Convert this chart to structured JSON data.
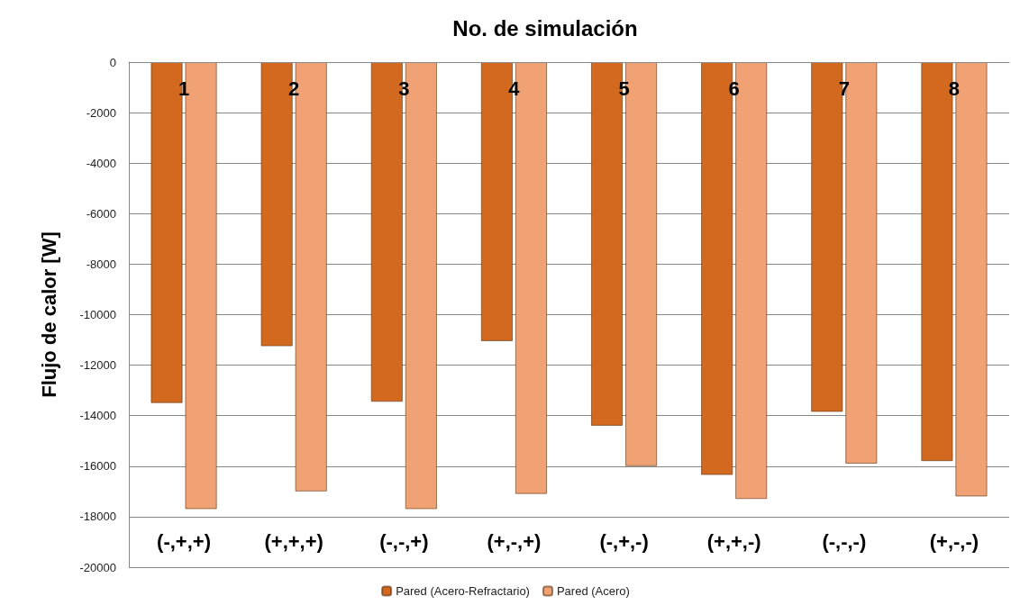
{
  "chart_data": {
    "type": "bar",
    "title": "No. de simulación",
    "ylabel": "Flujo de calor [W]",
    "categories": [
      "1",
      "2",
      "3",
      "4",
      "5",
      "6",
      "7",
      "8"
    ],
    "series": [
      {
        "name": "Pared (Acero-Refractario)",
        "color": "#d2691e",
        "values": [
          -13500,
          -11250,
          -13450,
          -11050,
          -14400,
          -16350,
          -13850,
          -15800
        ]
      },
      {
        "name": "Pared (Acero)",
        "color": "#f0a274",
        "values": [
          -17700,
          -17000,
          -17700,
          -17100,
          -16000,
          -17300,
          -15900,
          -17200
        ]
      }
    ],
    "annotations": [
      "(-,+,+)",
      "(+,+,+)",
      "(-,-,+)",
      "(+,-,+)",
      "(-,+,-)",
      "(+,+,-)",
      "(-,-,-)",
      "(+,-,-)"
    ],
    "ylim": [
      -20000,
      0
    ],
    "yticks": [
      0,
      -2000,
      -4000,
      -6000,
      -8000,
      -10000,
      -12000,
      -14000,
      -16000,
      -18000,
      -20000
    ],
    "grid": "y",
    "legend": "bottom"
  }
}
